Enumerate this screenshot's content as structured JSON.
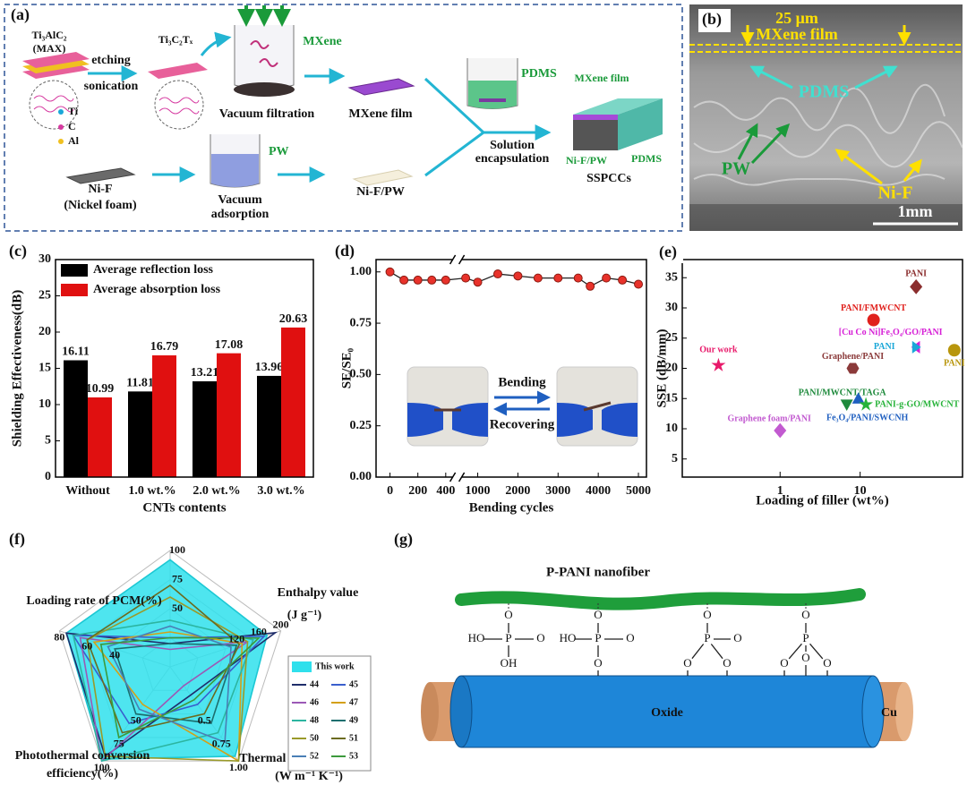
{
  "panel_a": {
    "label": "(a)",
    "labels": [
      "Ti₃AlC₂",
      "(MAX)",
      "etching",
      "sonication",
      "Ti₃C₂Tₓ",
      "MXene",
      "Vacuum filtration",
      "MXene film",
      "PDMS",
      "MXene film",
      "Solution",
      "encapsulation",
      "Ni-F/PW",
      "PDMS",
      "SSPCCs",
      "Ti",
      "C",
      "Al",
      "Ni-F",
      "(Nickel foam)",
      "PW",
      "Vacuum",
      "adsorption",
      "Ni-F/PW"
    ]
  },
  "panel_b": {
    "label": "(b)",
    "labels": [
      "25 μm",
      "MXene film",
      "PDMS",
      "PW",
      "Ni-F",
      "1mm"
    ]
  },
  "panel_g": {
    "label": "(g)",
    "fiber": "P-PANI nanofiber",
    "core": "Oxide",
    "shell": "Cu",
    "groups": [
      [
        "O",
        "HO",
        "P",
        "O",
        "OH"
      ],
      [
        "O",
        "HO",
        "P",
        "O",
        "O"
      ],
      [
        "O",
        "P",
        "O",
        "O",
        "O"
      ],
      [
        "O",
        "P",
        "O",
        "O",
        "O"
      ]
    ]
  },
  "chart_data": [
    {
      "panel": "(c)",
      "type": "bar",
      "x_label": "CNTs contents",
      "y_label": "Shielding Effectiveness(dB)",
      "categories": [
        "Without",
        "1.0 wt.%",
        "2.0 wt.%",
        "3.0 wt.%"
      ],
      "series": [
        {
          "name": "Average reflection loss",
          "color": "#000000",
          "values": [
            16.11,
            11.81,
            13.21,
            13.96
          ]
        },
        {
          "name": "Average absorption loss",
          "color": "#e01010",
          "values": [
            10.99,
            16.79,
            17.08,
            20.63
          ]
        }
      ],
      "ylim": [
        0,
        30
      ],
      "yticks": [
        0,
        5,
        10,
        15,
        20,
        25,
        30
      ],
      "legend": "upper left"
    },
    {
      "panel": "(d)",
      "type": "line",
      "x_label": "Bending cycles",
      "y_label": "SE/SE₀",
      "color": "#e8322b",
      "x": [
        0,
        100,
        200,
        300,
        400,
        700,
        1000,
        1500,
        2000,
        2500,
        3000,
        3500,
        3800,
        4200,
        4600,
        5000
      ],
      "values": [
        1.0,
        0.96,
        0.96,
        0.96,
        0.96,
        0.97,
        0.95,
        0.99,
        0.98,
        0.97,
        0.97,
        0.97,
        0.93,
        0.97,
        0.96,
        0.94
      ],
      "xlim_segments": [
        [
          -100,
          450
        ],
        [
          600,
          5200
        ]
      ],
      "xticks": [
        0,
        200,
        400,
        1000,
        2000,
        3000,
        4000,
        5000
      ],
      "ylim": [
        0,
        1.06
      ],
      "yticks": [
        {
          "value": 0,
          "label": "0.00"
        },
        0.25,
        {
          "value": 0.5,
          "label": "0.50"
        },
        0.75,
        {
          "value": 1,
          "label": "1.00"
        }
      ],
      "annotations": [
        "Bending",
        "Recovering"
      ]
    },
    {
      "panel": "(e)",
      "type": "scatter",
      "x_label": "Loading of filler (wt%)",
      "y_label": "SSE (dB/mm)",
      "xscale": "log",
      "xlim": [
        0.06,
        190
      ],
      "xticks": [
        1,
        10
      ],
      "ylim": [
        2,
        38
      ],
      "yticks": [
        5,
        10,
        15,
        20,
        25,
        30,
        35
      ],
      "series": [
        {
          "name": "PANI",
          "color": "#8b2e2e",
          "marker": "diamond",
          "x": [
            50
          ],
          "values": [
            33.5
          ]
        },
        {
          "name": "PANI/FMWCNT",
          "color": "#e0201c",
          "marker": "circle",
          "x": [
            14.7
          ],
          "values": [
            28
          ]
        },
        {
          "name": "[Cu Co Ni]Fe₃O₄/GO/PANI",
          "color": "#d61fd6",
          "marker": "triangle-left",
          "x": [
            52
          ],
          "values": [
            23.5
          ]
        },
        {
          "name": "PANI",
          "color": "#1aa7d8",
          "marker": "triangle-right",
          "x": [
            48
          ],
          "values": [
            23.5
          ]
        },
        {
          "name": "PANI",
          "color": "#b8960c",
          "marker": "circle",
          "x": [
            150
          ],
          "values": [
            23
          ]
        },
        {
          "name": "Our work",
          "color": "#e8196a",
          "marker": "star",
          "x": [
            0.17
          ],
          "values": [
            20.5
          ]
        },
        {
          "name": "Graphene/PANI",
          "color": "#8b3a3a",
          "marker": "hexagon",
          "x": [
            8.1
          ],
          "values": [
            20
          ]
        },
        {
          "name": "PANI/MWCNT/TAGA",
          "color": "#1e8a3c",
          "marker": "triangle-down",
          "x": [
            6.8
          ],
          "values": [
            14
          ]
        },
        {
          "name": "Fe₃O₄/PANI/SWCNH",
          "color": "#1f5fc0",
          "marker": "triangle-up",
          "x": [
            9.5
          ],
          "values": [
            15
          ]
        },
        {
          "name": "PANI-g-GO/MWCNT",
          "color": "#27b33a",
          "marker": "star",
          "x": [
            11.8
          ],
          "values": [
            14
          ]
        },
        {
          "name": "Graphene foam/PANI",
          "color": "#c25ad0",
          "marker": "diamond",
          "x": [
            1
          ],
          "values": [
            9.7
          ]
        }
      ]
    },
    {
      "panel": "(f)",
      "type": "radar",
      "axes": [
        {
          "name": null,
          "range": [
            0,
            100
          ],
          "ticks": [
            50,
            75,
            100
          ]
        },
        {
          "name": [
            "Enthalpy value",
            "(J g⁻¹)"
          ],
          "range": [
            0,
            200
          ],
          "ticks": [
            120,
            160,
            200
          ]
        },
        {
          "name": [
            "Thermal conductivity",
            "(W m⁻¹ K⁻¹)"
          ],
          "range": [
            0,
            1
          ],
          "ticks": [
            0.5,
            0.75,
            {
              "value": 1,
              "label": "1.00"
            }
          ]
        },
        {
          "name": [
            "Photothermal conversion",
            "efficiency(%)"
          ],
          "range": [
            0,
            100
          ],
          "ticks": [
            50,
            75,
            100
          ]
        },
        {
          "name": [
            "Loading rate of PCM(%)"
          ],
          "range": [
            0,
            80
          ],
          "ticks": [
            40,
            60,
            80
          ]
        }
      ],
      "series": [
        {
          "name": "This work",
          "color": "#2fe0ec",
          "values": [
            92,
            175,
            0.95,
            98,
            75
          ]
        },
        {
          "name": "44",
          "color": "#1f2d6b",
          "values": [
            20,
            190,
            0.3,
            95,
            75
          ]
        },
        {
          "name": "45",
          "color": "#3a5fcd",
          "values": [
            25,
            170,
            0.4,
            60,
            70
          ]
        },
        {
          "name": "46",
          "color": "#9b59b6",
          "values": [
            15,
            140,
            0.2,
            100,
            65
          ]
        },
        {
          "name": "47",
          "color": "#d4a017",
          "values": [
            30,
            130,
            1,
            40,
            55
          ]
        },
        {
          "name": "48",
          "color": "#2cb5a0",
          "values": [
            40,
            150,
            0.7,
            100,
            70
          ]
        },
        {
          "name": "49",
          "color": "#1d6f6f",
          "values": [
            20,
            120,
            0.6,
            50,
            40
          ]
        },
        {
          "name": "50",
          "color": "#9a9a2a",
          "values": [
            60,
            140,
            1,
            95,
            60
          ]
        },
        {
          "name": "51",
          "color": "#6b6b1f",
          "values": [
            70,
            125,
            0.5,
            70,
            60
          ]
        },
        {
          "name": "52",
          "color": "#4a7fb5",
          "values": [
            35,
            110,
            0.8,
            45,
            45
          ]
        },
        {
          "name": "53",
          "color": "#3c9a3c",
          "values": [
            25,
            160,
            0.35,
            75,
            50
          ]
        }
      ]
    }
  ]
}
